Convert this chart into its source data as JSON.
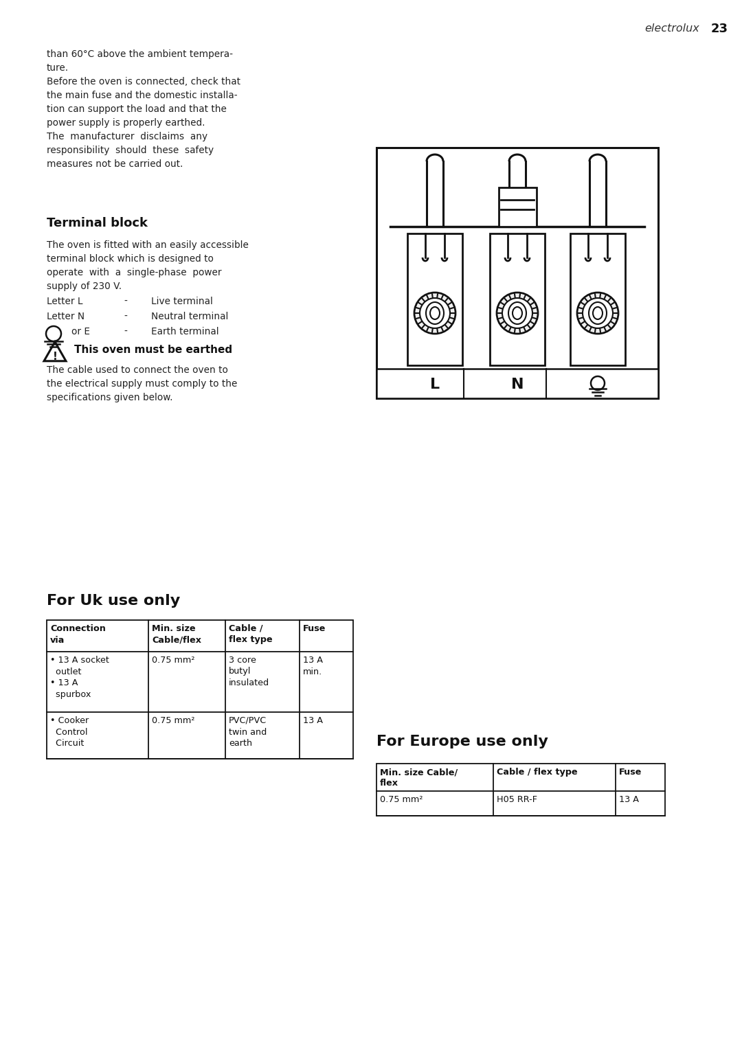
{
  "bg_color": "#ffffff",
  "page_number": "23",
  "brand": "electrolux",
  "top_text_lines": [
    "than 60°C above the ambient tempera-",
    "ture.",
    "Before the oven is connected, check that",
    "the main fuse and the domestic installa-",
    "tion can support the load and that the",
    "power supply is properly earthed.",
    "The  manufacturer  disclaims  any",
    "responsibility  should  these  safety",
    "measures not be carried out."
  ],
  "terminal_block_title": "Terminal block",
  "terminal_block_text": [
    "The oven is fitted with an easily accessible",
    "terminal block which is designed to",
    "operate  with  a  single-phase  power",
    "supply of 230 V."
  ],
  "letter_lines": [
    [
      "Letter L",
      "-",
      "Live terminal"
    ],
    [
      "Letter N",
      "-",
      "Neutral terminal"
    ]
  ],
  "warning_title": "This oven must be earthed",
  "warning_text": [
    "The cable used to connect the oven to",
    "the electrical supply must comply to the",
    "specifications given below."
  ],
  "uk_title": "For Uk use only",
  "uk_table_headers": [
    "Connection\nvia",
    "Min. size\nCable/flex",
    "Cable /\nflex type",
    "Fuse"
  ],
  "uk_table_rows": [
    [
      "• 13 A socket\n  outlet\n• 13 A\n  spurbox",
      "0.75 mm²",
      "3 core\nbutyl\ninsulated",
      "13 A\nmin."
    ],
    [
      "• Cooker\n  Control\n  Circuit",
      "0.75 mm²",
      "PVC/PVC\ntwin and\nearth",
      "13 A"
    ]
  ],
  "europe_title": "For Europe use only",
  "europe_table_headers": [
    "Min. size Cable/\nflex",
    "Cable / flex type",
    "Fuse"
  ],
  "europe_table_rows": [
    [
      "0.75 mm²",
      "H05 RR-F",
      "13 A"
    ]
  ]
}
